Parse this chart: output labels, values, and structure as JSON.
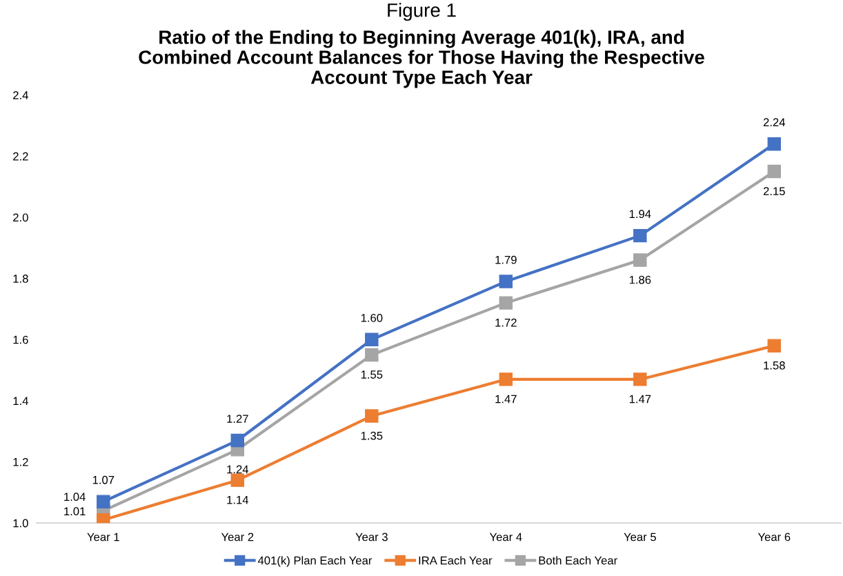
{
  "chart_data": {
    "type": "line",
    "title": "Figure 1",
    "subtitle": "Ratio of the Ending to Beginning Average 401(k), IRA, and\nCombined Account Balances for Those Having the Respective\nAccount Type Each Year",
    "categories": [
      "Year 1",
      "Year 2",
      "Year 3",
      "Year 4",
      "Year 5",
      "Year 6"
    ],
    "series": [
      {
        "name": "401(k) Plan Each Year",
        "color": "#4472c4",
        "values": [
          1.07,
          1.27,
          1.6,
          1.79,
          1.94,
          2.24
        ],
        "value_labels": [
          "1.07",
          "1.27",
          "1.60",
          "1.79",
          "1.94",
          "2.24"
        ]
      },
      {
        "name": "IRA Each Year",
        "color": "#ed7d31",
        "values": [
          1.01,
          1.14,
          1.35,
          1.47,
          1.47,
          1.58
        ],
        "value_labels": [
          "1.01",
          "1.14",
          "1.35",
          "1.47",
          "1.47",
          "1.58"
        ]
      },
      {
        "name": "Both Each Year",
        "color": "#a5a5a5",
        "values": [
          1.04,
          1.24,
          1.55,
          1.72,
          1.86,
          2.15
        ],
        "value_labels": [
          "1.04",
          "1.24",
          "1.55",
          "1.72",
          "1.86",
          "2.15"
        ]
      }
    ],
    "ylim": [
      1.0,
      2.4
    ],
    "yticks": [
      {
        "value": 1.0,
        "label": "1.0"
      },
      {
        "value": 1.2,
        "label": "1.2"
      },
      {
        "value": 1.4,
        "label": "1.4"
      },
      {
        "value": 1.6,
        "label": "1.6"
      },
      {
        "value": 1.8,
        "label": "1.8"
      },
      {
        "value": 2.0,
        "label": "2.0"
      },
      {
        "value": 2.2,
        "label": "2.2"
      },
      {
        "value": 2.4,
        "label": "2.4"
      }
    ],
    "grid": false,
    "legend": "bottom",
    "marker": "square",
    "line_style": "solid"
  }
}
